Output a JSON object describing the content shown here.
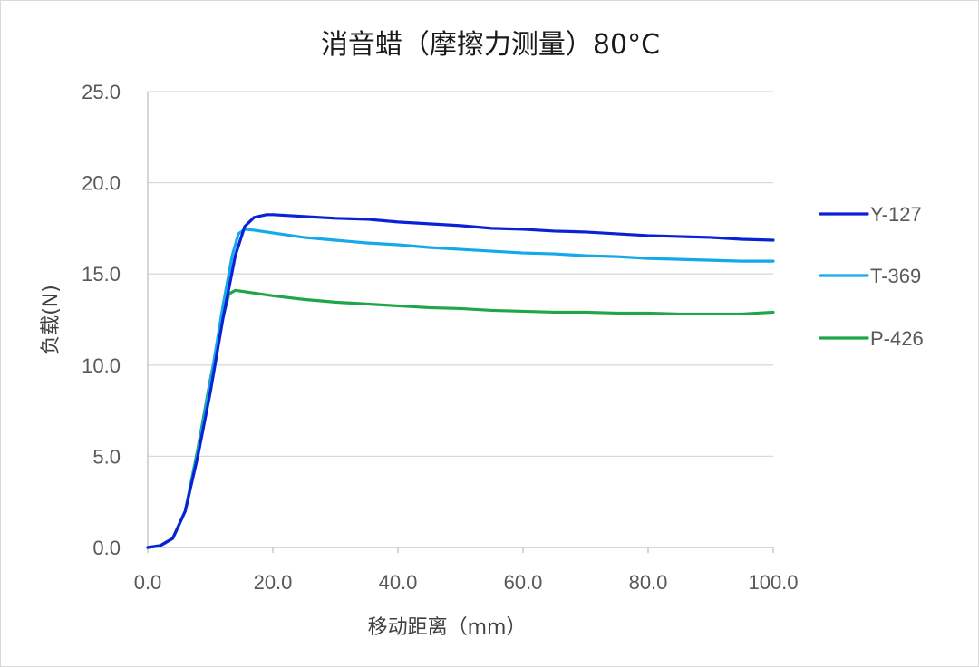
{
  "chart_data": {
    "type": "line",
    "title": "消音蜡（摩擦力测量）80°C",
    "xlabel": "移动距离（mm）",
    "ylabel": "负载(N)",
    "xlim": [
      0,
      100
    ],
    "ylim": [
      0,
      25
    ],
    "x_ticks": [
      "0.0",
      "20.0",
      "40.0",
      "60.0",
      "80.0",
      "100.0"
    ],
    "y_ticks": [
      "0.0",
      "5.0",
      "10.0",
      "15.0",
      "20.0",
      "25.0"
    ],
    "grid": "horizontal",
    "legend_position": "right",
    "series": [
      {
        "name": "Y-127",
        "color": "#0a22d6",
        "points": [
          [
            0,
            0
          ],
          [
            2,
            0.1
          ],
          [
            4,
            0.5
          ],
          [
            6,
            2.0
          ],
          [
            8,
            5.0
          ],
          [
            10,
            8.5
          ],
          [
            12,
            12.5
          ],
          [
            14,
            16.0
          ],
          [
            15.5,
            17.6
          ],
          [
            17,
            18.1
          ],
          [
            19,
            18.25
          ],
          [
            20,
            18.25
          ],
          [
            25,
            18.15
          ],
          [
            30,
            18.05
          ],
          [
            35,
            18.0
          ],
          [
            40,
            17.85
          ],
          [
            45,
            17.75
          ],
          [
            50,
            17.65
          ],
          [
            55,
            17.5
          ],
          [
            60,
            17.45
          ],
          [
            65,
            17.35
          ],
          [
            70,
            17.3
          ],
          [
            75,
            17.2
          ],
          [
            80,
            17.1
          ],
          [
            85,
            17.05
          ],
          [
            90,
            17.0
          ],
          [
            95,
            16.9
          ],
          [
            100,
            16.85
          ]
        ]
      },
      {
        "name": "T-369",
        "color": "#14a9e8",
        "points": [
          [
            0,
            0
          ],
          [
            2,
            0.1
          ],
          [
            4,
            0.5
          ],
          [
            6,
            2.0
          ],
          [
            8,
            5.2
          ],
          [
            10,
            9.0
          ],
          [
            12,
            13.2
          ],
          [
            13.5,
            16.0
          ],
          [
            14.5,
            17.2
          ],
          [
            15.5,
            17.45
          ],
          [
            17,
            17.4
          ],
          [
            20,
            17.25
          ],
          [
            25,
            17.0
          ],
          [
            30,
            16.85
          ],
          [
            35,
            16.7
          ],
          [
            40,
            16.6
          ],
          [
            45,
            16.45
          ],
          [
            50,
            16.35
          ],
          [
            55,
            16.25
          ],
          [
            60,
            16.15
          ],
          [
            65,
            16.1
          ],
          [
            70,
            16.0
          ],
          [
            75,
            15.95
          ],
          [
            80,
            15.85
          ],
          [
            85,
            15.8
          ],
          [
            90,
            15.75
          ],
          [
            95,
            15.7
          ],
          [
            100,
            15.7
          ]
        ]
      },
      {
        "name": "P-426",
        "color": "#1fa64a",
        "points": [
          [
            0,
            0
          ],
          [
            2,
            0.1
          ],
          [
            4,
            0.5
          ],
          [
            6,
            2.0
          ],
          [
            8,
            5.4
          ],
          [
            10,
            9.2
          ],
          [
            12,
            12.6
          ],
          [
            13,
            13.9
          ],
          [
            14,
            14.1
          ],
          [
            16,
            14.0
          ],
          [
            20,
            13.8
          ],
          [
            25,
            13.6
          ],
          [
            30,
            13.45
          ],
          [
            35,
            13.35
          ],
          [
            40,
            13.25
          ],
          [
            45,
            13.15
          ],
          [
            50,
            13.1
          ],
          [
            55,
            13.0
          ],
          [
            60,
            12.95
          ],
          [
            65,
            12.9
          ],
          [
            70,
            12.9
          ],
          [
            75,
            12.85
          ],
          [
            80,
            12.85
          ],
          [
            85,
            12.8
          ],
          [
            90,
            12.8
          ],
          [
            95,
            12.8
          ],
          [
            100,
            12.9
          ]
        ]
      }
    ]
  }
}
